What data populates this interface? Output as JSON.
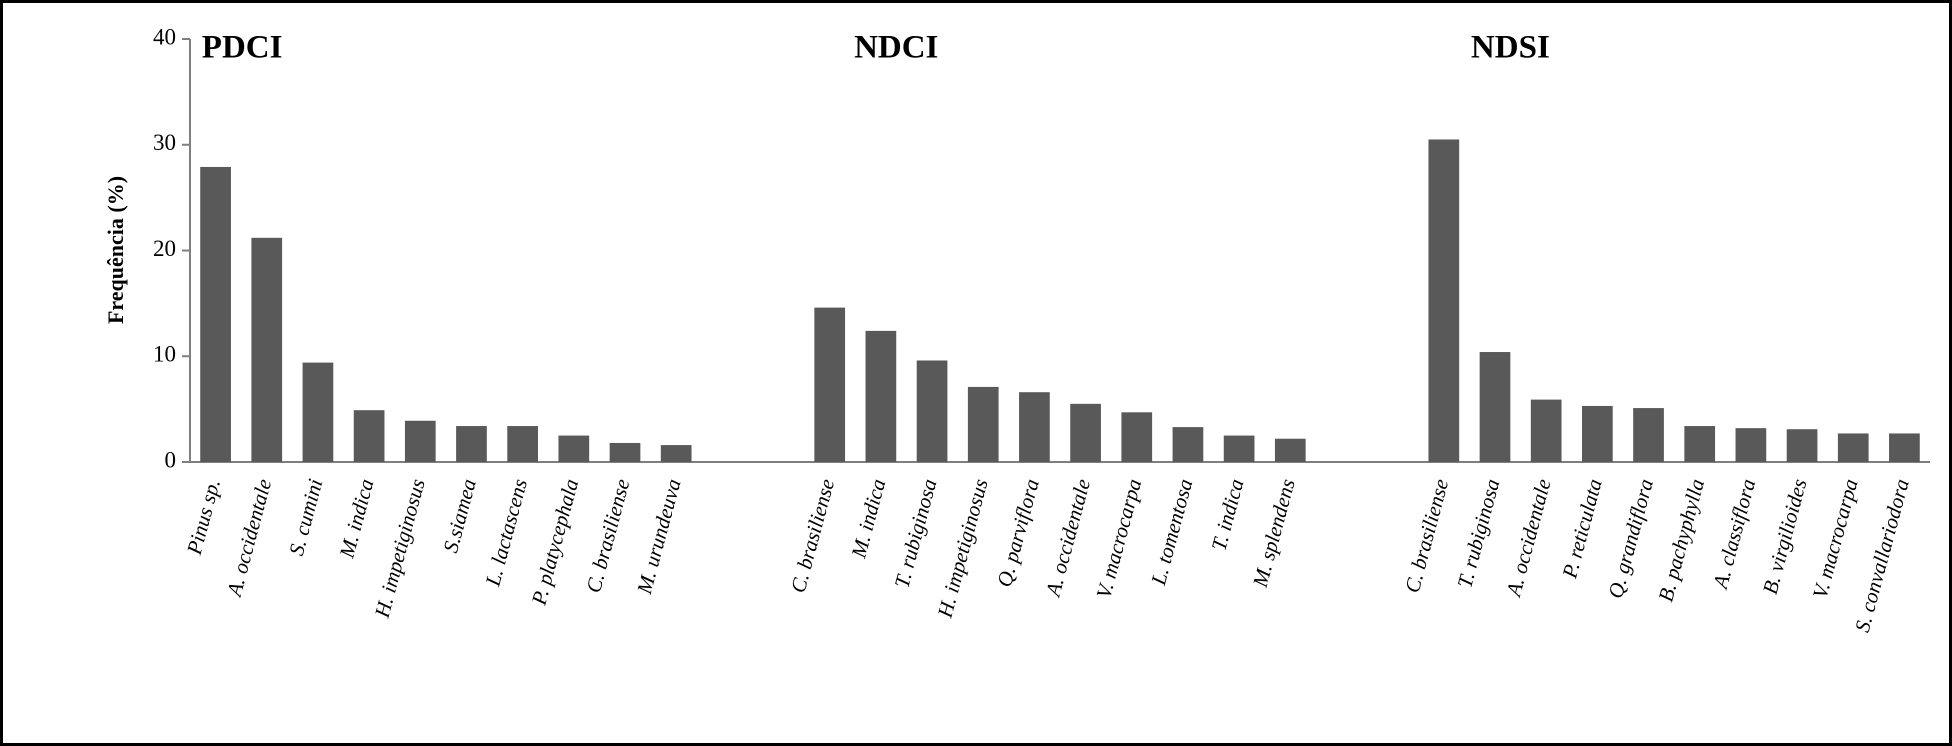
{
  "chart_data": {
    "type": "bar",
    "y_label": "Frequência (%)",
    "ylim": [
      0,
      40
    ],
    "yticks": [
      0,
      10,
      20,
      30,
      40
    ],
    "color": "#595959",
    "groups": [
      {
        "name": "PDCI",
        "categories": [
          "Pinus sp.",
          "A. occidentale",
          "S. cumini",
          "M. indica",
          "H. impetiginosus",
          "S.siamea",
          "L. lactascens",
          "P. platycephala",
          "C. brasiliense",
          "M. urundeuva"
        ],
        "values": [
          27.9,
          21.2,
          9.4,
          4.9,
          3.9,
          3.4,
          3.4,
          2.5,
          1.8,
          1.6
        ]
      },
      {
        "name": "NDCI",
        "categories": [
          "C. brasiliense",
          "M. indica",
          "T. rubiginosa",
          "H. impetiginosus",
          "Q. parviflora",
          "A. occidentale",
          "V. macrocarpa",
          "L. tomentosa",
          "T. indica",
          "M. splendens"
        ],
        "values": [
          14.6,
          12.4,
          9.6,
          7.1,
          6.6,
          5.5,
          4.7,
          3.3,
          2.5,
          2.2
        ]
      },
      {
        "name": "NDSI",
        "categories": [
          "C. brasiliense",
          "T. rubiginosa",
          "A. occidentale",
          "P. reticulata",
          "Q. grandiflora",
          "B. pachyphylla",
          "A. classiflora",
          "B. virgilioides",
          "V. macrocarpa",
          "S. convallariodora"
        ],
        "values": [
          30.5,
          10.4,
          5.9,
          5.3,
          5.1,
          3.4,
          3.2,
          3.1,
          2.7,
          2.7
        ]
      }
    ]
  }
}
